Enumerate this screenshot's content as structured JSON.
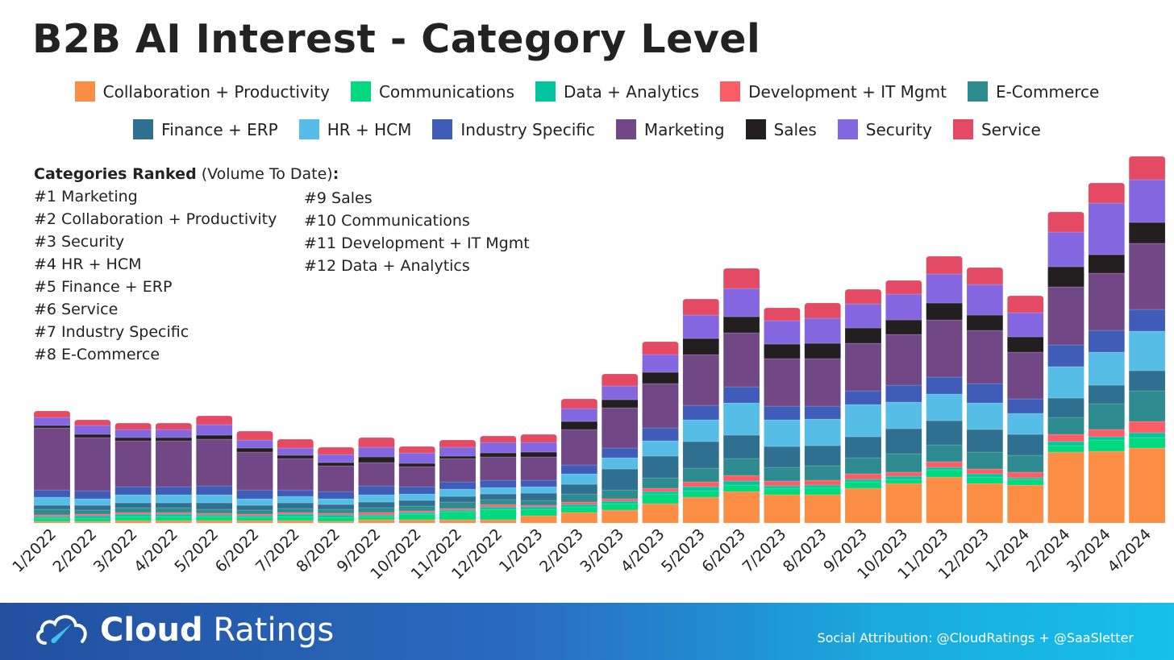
{
  "chart_data": {
    "type": "bar",
    "stacked": true,
    "title": "B2B AI Interest - Category Level",
    "xlabel": "",
    "ylabel": "",
    "y_units": "relative interest volume (no axis shown; estimated)",
    "legend_position": "top",
    "grid": false,
    "categories": [
      "1/2022",
      "2/2022",
      "3/2022",
      "4/2022",
      "5/2022",
      "6/2022",
      "7/2022",
      "8/2022",
      "9/2022",
      "10/2022",
      "11/2022",
      "12/2022",
      "1/2023",
      "2/2023",
      "3/2023",
      "4/2023",
      "5/2023",
      "6/2023",
      "7/2023",
      "8/2023",
      "9/2023",
      "10/2023",
      "11/2023",
      "12/2023",
      "1/2024",
      "2/2024",
      "3/2024",
      "4/2024"
    ],
    "series": [
      {
        "name": "Collaboration + Productivity",
        "color": "#fc8d45",
        "values": [
          2,
          2,
          3,
          3,
          3,
          3,
          3,
          2,
          4,
          4,
          4,
          4,
          9,
          13,
          16,
          24,
          32,
          39,
          35,
          35,
          43,
          49,
          57,
          49,
          47,
          88,
          89,
          93
        ]
      },
      {
        "name": "Communications",
        "color": "#00d97e",
        "values": [
          4,
          4,
          5,
          5,
          5,
          4,
          5,
          5,
          4,
          7,
          10,
          13,
          8,
          7,
          8,
          12,
          8,
          8,
          8,
          9,
          8,
          5,
          9,
          8,
          7,
          8,
          14,
          13
        ]
      },
      {
        "name": "Data + Analytics",
        "color": "#00c4a0",
        "values": [
          2,
          3,
          3,
          3,
          2,
          2,
          3,
          3,
          2,
          2,
          2,
          3,
          3,
          3,
          3,
          3,
          5,
          5,
          3,
          3,
          3,
          4,
          3,
          4,
          2,
          5,
          4,
          6
        ]
      },
      {
        "name": "Development + IT Mgmt",
        "color": "#fc5c65",
        "values": [
          2,
          2,
          2,
          2,
          2,
          2,
          2,
          2,
          3,
          2,
          2,
          3,
          2,
          3,
          3,
          4,
          6,
          7,
          6,
          6,
          7,
          5,
          7,
          6,
          7,
          9,
          9,
          14
        ]
      },
      {
        "name": "E-Commerce",
        "color": "#2e8b8f",
        "values": [
          7,
          5,
          6,
          6,
          5,
          5,
          5,
          5,
          6,
          6,
          8,
          6,
          6,
          10,
          11,
          13,
          17,
          21,
          17,
          18,
          20,
          23,
          21,
          21,
          21,
          21,
          32,
          38
        ]
      },
      {
        "name": "Finance + ERP",
        "color": "#2f6f8f",
        "values": [
          5,
          6,
          6,
          6,
          8,
          6,
          7,
          6,
          7,
          7,
          7,
          7,
          9,
          12,
          26,
          27,
          33,
          29,
          26,
          25,
          26,
          31,
          30,
          28,
          26,
          24,
          23,
          25
        ]
      },
      {
        "name": "HR + HCM",
        "color": "#56bde6",
        "values": [
          10,
          8,
          10,
          10,
          10,
          8,
          8,
          7,
          9,
          8,
          9,
          8,
          8,
          13,
          14,
          19,
          27,
          40,
          33,
          33,
          40,
          33,
          33,
          33,
          26,
          39,
          41,
          49
        ]
      },
      {
        "name": "Industry Specific",
        "color": "#3e5cb8",
        "values": [
          9,
          10,
          10,
          10,
          11,
          11,
          8,
          9,
          11,
          9,
          9,
          9,
          8,
          11,
          12,
          16,
          18,
          20,
          17,
          16,
          17,
          21,
          21,
          24,
          18,
          27,
          27,
          27
        ]
      },
      {
        "name": "Marketing",
        "color": "#714785",
        "values": [
          77,
          66,
          57,
          57,
          58,
          47,
          39,
          32,
          29,
          25,
          29,
          29,
          29,
          44,
          50,
          55,
          63,
          67,
          59,
          59,
          59,
          63,
          71,
          66,
          58,
          72,
          71,
          82
        ]
      },
      {
        "name": "Sales",
        "color": "#231f20",
        "values": [
          3,
          4,
          4,
          4,
          5,
          5,
          4,
          4,
          7,
          4,
          3,
          5,
          6,
          10,
          10,
          14,
          20,
          20,
          18,
          19,
          19,
          18,
          21,
          19,
          19,
          25,
          23,
          26
        ]
      },
      {
        "name": "Security",
        "color": "#8466e0",
        "values": [
          10,
          11,
          10,
          10,
          13,
          10,
          9,
          10,
          12,
          13,
          11,
          13,
          12,
          16,
          17,
          22,
          29,
          35,
          29,
          31,
          30,
          32,
          36,
          38,
          30,
          43,
          64,
          53
        ]
      },
      {
        "name": "Service",
        "color": "#e44a64",
        "values": [
          8,
          7,
          8,
          8,
          11,
          11,
          11,
          9,
          12,
          8,
          9,
          8,
          10,
          12,
          15,
          16,
          20,
          25,
          16,
          19,
          18,
          17,
          22,
          21,
          21,
          25,
          25,
          29
        ]
      }
    ]
  },
  "ranked": {
    "heading_bold": "Categories Ranked",
    "heading_rest": " (Volume To Date)",
    "heading_colon": ":",
    "items": [
      "#1 Marketing",
      "#2 Collaboration + Productivity",
      "#3 Security",
      "#4 HR + HCM",
      "#5 Finance + ERP",
      "#6 Service",
      "#7 Industry Specific",
      "#8 E-Commerce",
      "#9 Sales",
      "#10 Communications",
      "#11 Development + IT Mgmt",
      "#12 Data + Analytics"
    ]
  },
  "footer": {
    "brand_bold": "Cloud",
    "brand_light": "Ratings",
    "attribution": "Social Attribution: @CloudRatings + @SaaSletter"
  }
}
